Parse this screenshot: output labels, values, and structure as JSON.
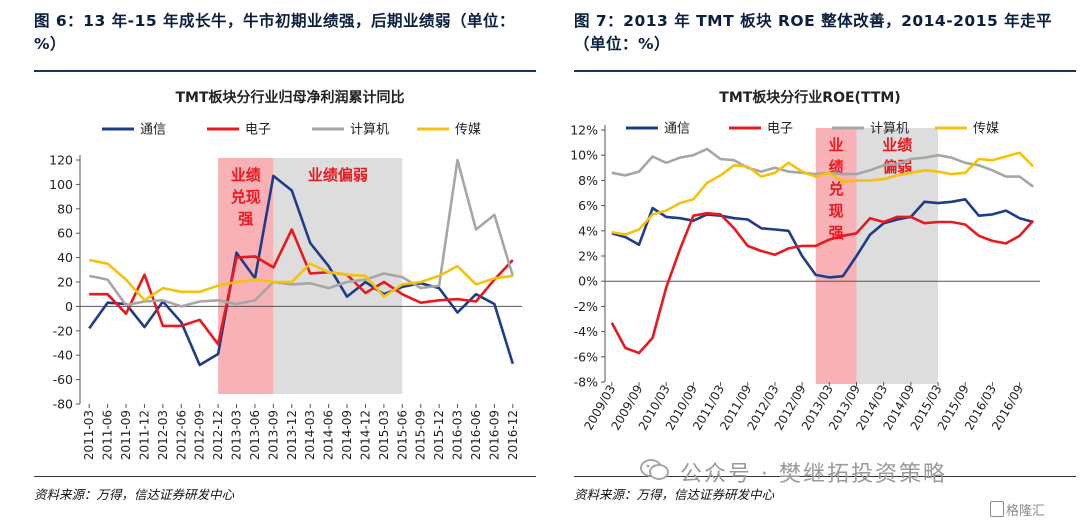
{
  "left": {
    "figure_title": "图 6：13 年-15 年成长牛，牛市初期业绩强，后期业绩弱（单位：%）",
    "source": "资料来源：万得，信达证券研发中心",
    "chart_data": {
      "type": "line",
      "title": "TMT板块分行业归母净利润累计同比",
      "ylim": [
        -80,
        120
      ],
      "yticks": [
        -80,
        -60,
        -40,
        -20,
        0,
        20,
        40,
        60,
        80,
        100,
        120
      ],
      "categories": [
        "2011-03",
        "2011-06",
        "2011-09",
        "2011-12",
        "2012-03",
        "2012-06",
        "2012-09",
        "2012-12",
        "2013-03",
        "2013-06",
        "2013-09",
        "2013-12",
        "2014-03",
        "2014-06",
        "2014-09",
        "2014-12",
        "2015-03",
        "2015-06",
        "2015-09",
        "2015-12",
        "2016-03",
        "2016-06",
        "2016-09",
        "2016-12"
      ],
      "series": [
        {
          "name": "通信",
          "color": "#1f3c88",
          "values": [
            -18,
            3,
            2,
            -17,
            4,
            -13,
            -48,
            -39,
            44,
            23,
            107,
            95,
            52,
            33,
            8,
            20,
            10,
            16,
            19,
            15,
            -5,
            10,
            2,
            -47
          ]
        },
        {
          "name": "电子",
          "color": "#e8191f",
          "values": [
            10,
            10,
            -6,
            26,
            -16,
            -16,
            -11,
            -31,
            40,
            41,
            32,
            63,
            27,
            28,
            26,
            11,
            20,
            10,
            3,
            5,
            6,
            4,
            22,
            38
          ]
        },
        {
          "name": "计算机",
          "color": "#a6a6a6",
          "values": [
            25,
            22,
            1,
            4,
            5,
            0,
            4,
            5,
            2,
            5,
            20,
            18,
            19,
            15,
            20,
            22,
            27,
            24,
            15,
            17,
            120,
            63,
            75,
            25
          ]
        },
        {
          "name": "传媒",
          "color": "#f4c20d",
          "values": [
            38,
            35,
            22,
            5,
            15,
            12,
            12,
            17,
            20,
            22,
            20,
            20,
            35,
            28,
            26,
            25,
            8,
            18,
            20,
            25,
            33,
            18,
            23,
            25
          ]
        }
      ],
      "annotations": [
        {
          "text": "业绩兑现强",
          "span": [
            "2012-12",
            "2013-09"
          ],
          "color": "#f7a8ad"
        },
        {
          "text": "业绩偏弱",
          "span": [
            "2013-09",
            "2015-06"
          ],
          "color": "#d9d9d9"
        }
      ]
    }
  },
  "right": {
    "figure_title": "图 7：2013 年 TMT 板块 ROE 整体改善，2014-2015 年走平（单位：%）",
    "source": "资料来源：万得，信达证券研发中心",
    "chart_data": {
      "type": "line",
      "title": "TMT板块分行业ROE(TTM)",
      "ylim": [
        -8,
        12
      ],
      "yticks": [
        "-8%",
        "-6%",
        "-4%",
        "-2%",
        "0%",
        "2%",
        "4%",
        "6%",
        "8%",
        "10%",
        "12%"
      ],
      "categories": [
        "2009/03",
        "2009/06",
        "2009/09",
        "2009/12",
        "2010/03",
        "2010/06",
        "2010/09",
        "2010/12",
        "2011/03",
        "2011/06",
        "2011/09",
        "2011/12",
        "2012/03",
        "2012/06",
        "2012/09",
        "2012/12",
        "2013/03",
        "2013/06",
        "2013/09",
        "2013/12",
        "2014/03",
        "2014/06",
        "2014/09",
        "2014/12",
        "2015/03",
        "2015/06",
        "2015/09",
        "2015/12",
        "2016/03",
        "2016/06",
        "2016/09",
        "2016/12"
      ],
      "tick_labels": [
        "2009/03",
        "2009/09",
        "2010/03",
        "2010/09",
        "2011/03",
        "2011/09",
        "2012/03",
        "2012/09",
        "2013/03",
        "2013/09",
        "2014/03",
        "2014/09",
        "2015/03",
        "2015/09",
        "2016/03",
        "2016/09"
      ],
      "series": [
        {
          "name": "通信",
          "color": "#1f3c88",
          "values": [
            3.8,
            3.5,
            2.9,
            5.8,
            5.1,
            5.0,
            4.8,
            5.3,
            5.2,
            5.0,
            4.9,
            4.2,
            4.1,
            4.0,
            2.0,
            0.5,
            0.3,
            0.4,
            2.0,
            3.7,
            4.6,
            4.9,
            5.1,
            6.3,
            6.2,
            6.3,
            6.5,
            5.2,
            5.3,
            5.6,
            5.0,
            4.7
          ]
        },
        {
          "name": "电子",
          "color": "#e8191f",
          "values": [
            -3.3,
            -5.3,
            -5.7,
            -4.5,
            -0.5,
            2.5,
            5.2,
            5.4,
            5.3,
            4.2,
            2.8,
            2.4,
            2.1,
            2.6,
            2.8,
            2.8,
            3.3,
            3.6,
            3.8,
            5.0,
            4.7,
            5.1,
            5.1,
            4.6,
            4.7,
            4.7,
            4.5,
            3.6,
            3.2,
            3.0,
            3.6,
            4.8
          ]
        },
        {
          "name": "计算机",
          "color": "#a6a6a6",
          "values": [
            8.6,
            8.4,
            8.7,
            9.9,
            9.4,
            9.8,
            10.0,
            10.5,
            9.7,
            9.6,
            9.0,
            8.7,
            9.0,
            8.7,
            8.6,
            8.5,
            8.6,
            8.5,
            8.5,
            8.8,
            9.2,
            9.3,
            9.7,
            9.8,
            10.0,
            9.8,
            9.4,
            9.2,
            8.8,
            8.3,
            8.3,
            7.5
          ]
        },
        {
          "name": "传媒",
          "color": "#f4c20d",
          "values": [
            3.9,
            3.7,
            4.1,
            5.3,
            5.6,
            6.2,
            6.5,
            7.8,
            8.4,
            9.2,
            9.1,
            8.3,
            8.6,
            9.4,
            8.7,
            8.3,
            8.6,
            7.9,
            8.0,
            8.0,
            8.1,
            8.4,
            8.6,
            8.8,
            8.7,
            8.5,
            8.6,
            9.7,
            9.6,
            9.9,
            10.2,
            9.1
          ]
        }
      ],
      "annotations": [
        {
          "text": "业绩兑现强",
          "span": [
            "2012/12",
            "2013/09"
          ],
          "color": "#f7a8ad"
        },
        {
          "text": "业绩偏弱",
          "span": [
            "2013/09",
            "2015/03"
          ],
          "color": "#d9d9d9"
        }
      ]
    }
  },
  "watermark": {
    "text": "公众号 · 樊继拓投资策略",
    "corner": "格隆汇"
  }
}
